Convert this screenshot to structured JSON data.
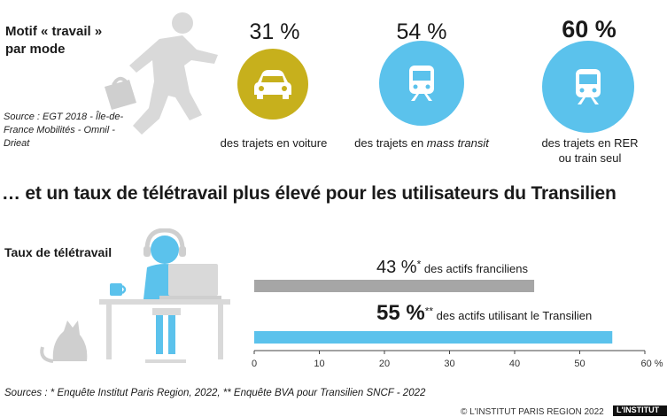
{
  "motif": {
    "title": "Motif « travail » par mode",
    "source": "Source : EGT 2018 - Île-de-France Mobilités - Omnil - Drieat"
  },
  "modes": [
    {
      "pct": "31 %",
      "caption": "des trajets en voiture",
      "icon": "car-icon",
      "color": "#c7b01c"
    },
    {
      "pct": "54 %",
      "caption_pre": "des trajets en ",
      "caption_em": "mass transit",
      "icon": "train-icon",
      "color": "#5bc2ec"
    },
    {
      "pct": "60 %",
      "caption": "des trajets en RER ou train seul",
      "icon": "train-icon",
      "color": "#5bc2ec"
    }
  ],
  "headline": "… et un taux de télétravail plus élevé pour les utilisateurs du Transilien",
  "chart_data": {
    "type": "bar",
    "orientation": "horizontal",
    "title": "Taux de télétravail",
    "categories": [
      "des actifs franciliens",
      "des actifs utilisant le Transilien"
    ],
    "values": [
      43,
      55
    ],
    "value_labels": [
      "43 %",
      "55 %"
    ],
    "value_markers": [
      "*",
      "**"
    ],
    "colors": [
      "#a6a6a6",
      "#5bc2ec"
    ],
    "xlim": [
      0,
      60
    ],
    "x_ticks": [
      "0",
      "10",
      "20",
      "30",
      "40",
      "50",
      "60 %"
    ]
  },
  "footer": {
    "sources": "Sources : * Enquête Institut Paris Region, 2022, ** Enquête BVA pour Transilien SNCF - 2022",
    "copyright": "© L'INSTITUT PARIS REGION 2022",
    "logo": "L'INSTITUT"
  }
}
